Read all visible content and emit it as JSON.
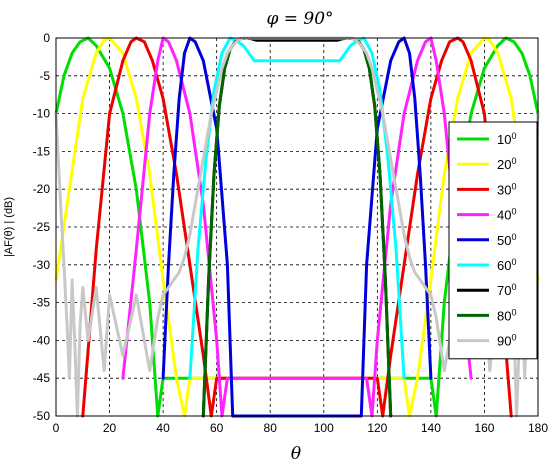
{
  "chart_data": {
    "type": "line",
    "title": "φ = 90°",
    "xlabel": "θ",
    "ylabel": "|AF(θ) | (dB)",
    "xlim": [
      0,
      180
    ],
    "ylim": [
      -50,
      0
    ],
    "xticks": [
      0,
      20,
      40,
      60,
      80,
      100,
      120,
      140,
      160,
      180
    ],
    "yticks": [
      0,
      -5,
      -10,
      -15,
      -20,
      -25,
      -30,
      -35,
      -40,
      -45,
      -50
    ],
    "grid": true,
    "legend_position": "right",
    "series": [
      {
        "name": "10",
        "name_sup": "0",
        "color": "#00dd00",
        "x": [
          0,
          3,
          6,
          9,
          12,
          15,
          20,
          25,
          30,
          35,
          38,
          40
        ],
        "y": [
          -10,
          -5,
          -2,
          -0.5,
          0,
          -1,
          -4,
          -10,
          -20,
          -35,
          -50,
          -45
        ]
      },
      {
        "name": "20",
        "name_sup": "0",
        "color": "#ffff00",
        "x": [
          0,
          5,
          10,
          15,
          18,
          20,
          25,
          30,
          35,
          40,
          45,
          48,
          50
        ],
        "y": [
          -32,
          -20,
          -8,
          -2,
          -0.3,
          0,
          -2,
          -8,
          -18,
          -32,
          -45,
          -50,
          -45
        ]
      },
      {
        "name": "30",
        "name_sup": "0",
        "color": "#ee0000",
        "x": [
          10,
          15,
          20,
          25,
          28,
          30,
          33,
          36,
          40,
          45,
          50,
          55,
          58,
          60
        ],
        "y": [
          -50,
          -28,
          -10,
          -3,
          -0.5,
          0,
          -0.5,
          -3,
          -8,
          -18,
          -30,
          -42,
          -50,
          -45
        ]
      },
      {
        "name": "40",
        "name_sup": "0",
        "color": "#ff22ff",
        "x": [
          25,
          30,
          35,
          38,
          40,
          42,
          45,
          50,
          55,
          60,
          62,
          64
        ],
        "y": [
          -45,
          -28,
          -10,
          -3,
          0,
          -0.5,
          -3,
          -10,
          -22,
          -40,
          -50,
          -45
        ]
      },
      {
        "name": "50",
        "name_sup": "0",
        "color": "#0000dd",
        "x": [
          40,
          42,
          44,
          46,
          48,
          50,
          52,
          55,
          60,
          64,
          66
        ],
        "y": [
          -45,
          -30,
          -18,
          -8,
          -2,
          0,
          -0.5,
          -3,
          -12,
          -30,
          -50
        ]
      },
      {
        "name": "60",
        "name_sup": "0",
        "color": "#00ffff",
        "x": [
          50,
          53,
          56,
          59,
          62,
          65,
          68,
          70,
          74
        ],
        "y": [
          -45,
          -28,
          -16,
          -7,
          -2,
          0,
          -0.5,
          -1,
          -3
        ]
      },
      {
        "name": "70",
        "name_sup": "0",
        "color": "#000000",
        "x": [
          55,
          57,
          59,
          61,
          63,
          65,
          67,
          69,
          71,
          73,
          75
        ],
        "y": [
          -50,
          -32,
          -18,
          -9,
          -4,
          -1.5,
          -0.5,
          -0.1,
          0,
          -0.1,
          -0.3
        ]
      },
      {
        "name": "80",
        "name_sup": "0",
        "color": "#006600",
        "x": [
          55,
          57,
          59,
          61,
          63,
          65,
          67,
          69,
          71
        ],
        "y": [
          -50,
          -32,
          -18,
          -9,
          -4,
          -1.5,
          -0.5,
          -0.1,
          0
        ]
      },
      {
        "name": "90",
        "name_sup": "0",
        "color": "#c8c8c8",
        "x": [
          0,
          1,
          2,
          3,
          4,
          5,
          6,
          7,
          8,
          9,
          10,
          12,
          15,
          18,
          20,
          25,
          30,
          35,
          38,
          40,
          42,
          44,
          46,
          48,
          50,
          52,
          54,
          56,
          58,
          60,
          62,
          64,
          66,
          68,
          70
        ],
        "y": [
          -10,
          -17,
          -24,
          -30,
          -37,
          -45,
          -32,
          -40,
          -50,
          -38,
          -33,
          -40,
          -33,
          -44,
          -34,
          -42,
          -34,
          -44,
          -37,
          -34,
          -33,
          -32,
          -31,
          -29,
          -26,
          -22,
          -18,
          -14,
          -10,
          -7,
          -4,
          -2,
          -1,
          -0.3,
          0
        ]
      }
    ]
  }
}
